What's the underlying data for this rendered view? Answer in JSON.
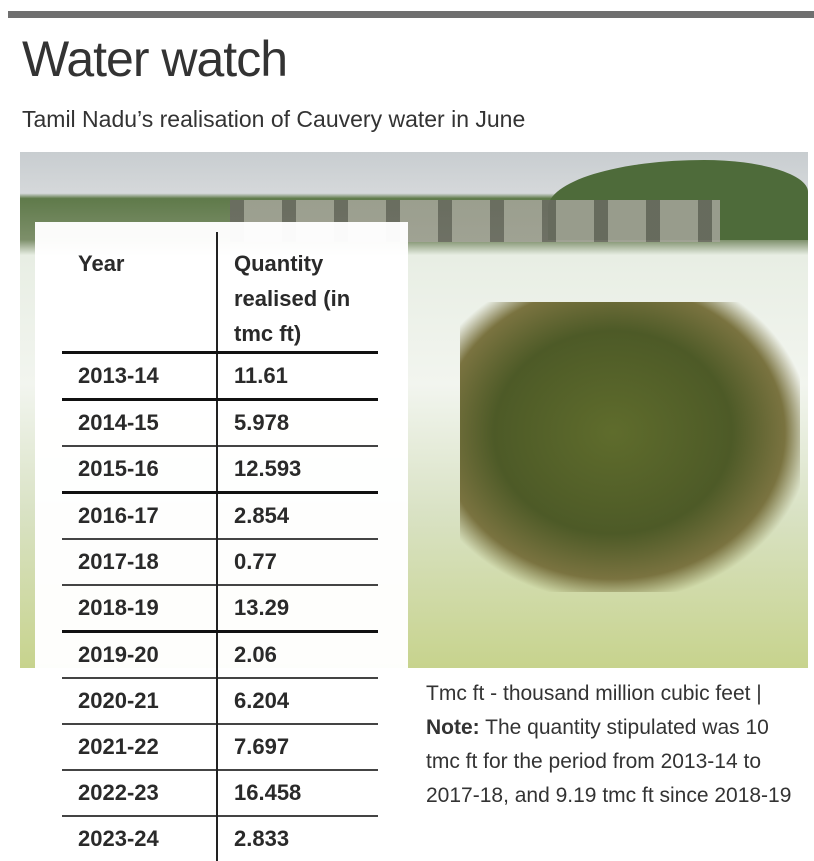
{
  "header": {
    "title": "Water watch",
    "subtitle": "Tamil Nadu’s realisation of Cauvery water in June"
  },
  "table": {
    "columns": [
      "Year",
      "Quantity realised (in tmc ft)"
    ],
    "rows": [
      [
        "2013-14",
        11.61
      ],
      [
        "2014-15",
        5.978
      ],
      [
        "2015-16",
        12.593
      ],
      [
        "2016-17",
        2.854
      ],
      [
        "2017-18",
        0.77
      ],
      [
        "2018-19",
        13.29
      ],
      [
        "2019-20",
        2.06
      ],
      [
        "2020-21",
        6.204
      ],
      [
        "2021-22",
        7.697
      ],
      [
        "2022-23",
        16.458
      ],
      [
        "2023-24",
        2.833
      ]
    ]
  },
  "note": {
    "definition": "Tmc ft - thousand million cubic feet |",
    "label": "Note:",
    "text": "The quantity stipulated was 10 tmc ft for the period from 2013-14 to 2017-18, and 9.19 tmc ft since 2018-19"
  }
}
